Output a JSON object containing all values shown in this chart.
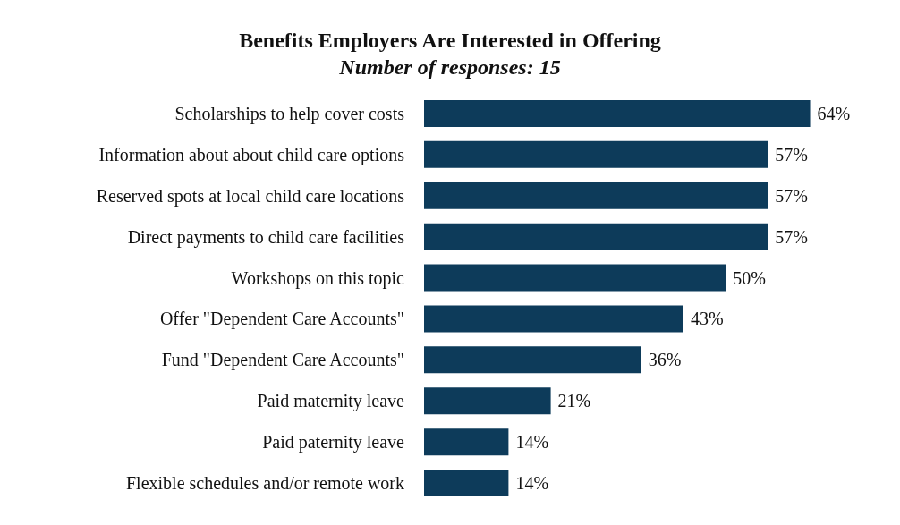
{
  "chart_data": {
    "type": "bar",
    "orientation": "horizontal",
    "title": "Benefits Employers Are Interested in Offering",
    "subtitle": "Number of responses: 15",
    "categories": [
      "Scholarships to help cover costs",
      "Information about about child care options",
      "Reserved spots at local child care locations",
      "Direct payments to child care facilities",
      "Workshops on this topic",
      "Offer \"Dependent Care Accounts\"",
      "Fund \"Dependent Care Accounts\"",
      "Paid maternity leave",
      "Paid paternity leave",
      "Flexible schedules and/or remote work"
    ],
    "values": [
      64,
      57,
      57,
      57,
      50,
      43,
      36,
      21,
      14,
      14
    ],
    "value_labels": [
      "64%",
      "57%",
      "57%",
      "57%",
      "50%",
      "43%",
      "36%",
      "21%",
      "14%",
      "14%"
    ],
    "color": "#0d3b5a"
  }
}
